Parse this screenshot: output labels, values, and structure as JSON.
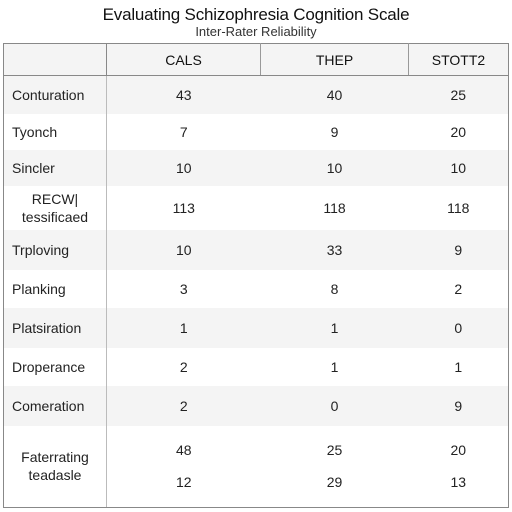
{
  "title": "Evaluating Schizophresia Cognition Scale",
  "subtitle": "Inter-Rater Reliability",
  "columns": [
    "CALS",
    "THEP",
    "STOTT2"
  ],
  "rows": [
    {
      "label": "Conturation",
      "values": [
        "43",
        "40",
        "25"
      ]
    },
    {
      "label": "Tyonch",
      "values": [
        "7",
        "9",
        "20"
      ]
    },
    {
      "label": "Sincler",
      "values": [
        "10",
        "10",
        "10"
      ]
    },
    {
      "label_lines": [
        "RECW|",
        "tessificaed"
      ],
      "values": [
        "113",
        "118",
        "118"
      ]
    },
    {
      "label": "Trploving",
      "values": [
        "10",
        "33",
        "9"
      ]
    },
    {
      "label": "Planking",
      "values": [
        "3",
        "8",
        "2"
      ]
    },
    {
      "label": "Platsiration",
      "values": [
        "1",
        "1",
        "0"
      ]
    },
    {
      "label": "Droperance",
      "values": [
        "2",
        "1",
        "1"
      ]
    },
    {
      "label": "Comeration",
      "values": [
        "2",
        "0",
        "9"
      ]
    },
    {
      "label_lines": [
        "Faterrating",
        "teadasle"
      ],
      "values_top": [
        "48",
        "25",
        "20"
      ],
      "values_bottom": [
        "12",
        "29",
        "13"
      ]
    }
  ]
}
